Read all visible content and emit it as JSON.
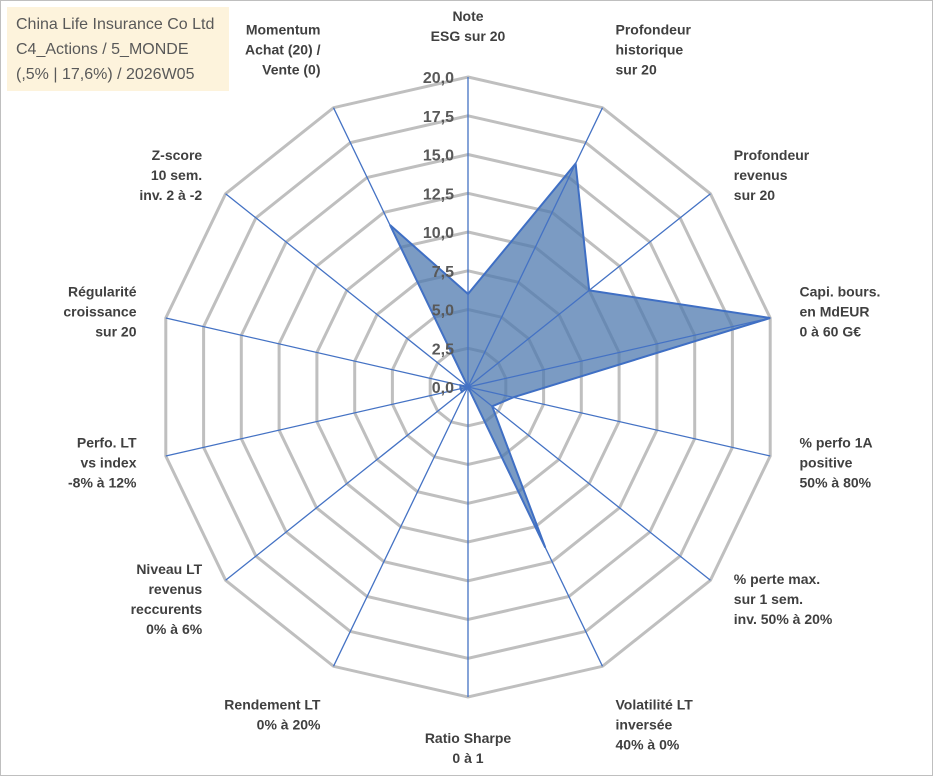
{
  "info": {
    "line1": "China Life Insurance Co Ltd",
    "line2": "C4_Actions / 5_MONDE",
    "line3": "(,5% | 17,6%) / 2026W05"
  },
  "chart_data": {
    "type": "radar",
    "rmax": 20,
    "ticks": [
      "0,0",
      "2,5",
      "5,0",
      "7,5",
      "10,0",
      "12,5",
      "15,0",
      "17,5",
      "20,0"
    ],
    "axes": [
      [
        "Note",
        "ESG sur 20"
      ],
      [
        "Profondeur",
        "historique",
        "sur 20"
      ],
      [
        "Profondeur",
        "revenus",
        "sur 20"
      ],
      [
        "Capi. bours.",
        "en MdEUR",
        "0 à 60 G€"
      ],
      [
        "% perfo 1A",
        "positive",
        "50% à 80%"
      ],
      [
        "% perte max.",
        "sur 1 sem.",
        "inv. 50% à 20%"
      ],
      [
        "Volatilité LT",
        "inversée",
        "40% à 0%"
      ],
      [
        "Ratio Sharpe",
        "0 à 1"
      ],
      [
        "Rendement LT",
        "0% à 20%"
      ],
      [
        "Niveau LT",
        "revenus",
        "reccurents",
        "0% à 6%"
      ],
      [
        "Perfo. LT",
        "vs index",
        "-8% à 12%"
      ],
      [
        "Régularité",
        "croissance",
        "sur 20"
      ],
      [
        "Z-score",
        "10 sem.",
        "inv. 2 à -2"
      ],
      [
        "Momentum",
        "Achat (20) /",
        "Vente (0)"
      ]
    ],
    "values": [
      6,
      16,
      10,
      20,
      3,
      2,
      11.5,
      0,
      0,
      0.5,
      0.5,
      0.5,
      0,
      11.6
    ],
    "colors": {
      "fill": "#4f7aaf",
      "stroke": "#3f6fc4",
      "grid": "#bfbfbf",
      "axis": "#4472c4"
    }
  }
}
